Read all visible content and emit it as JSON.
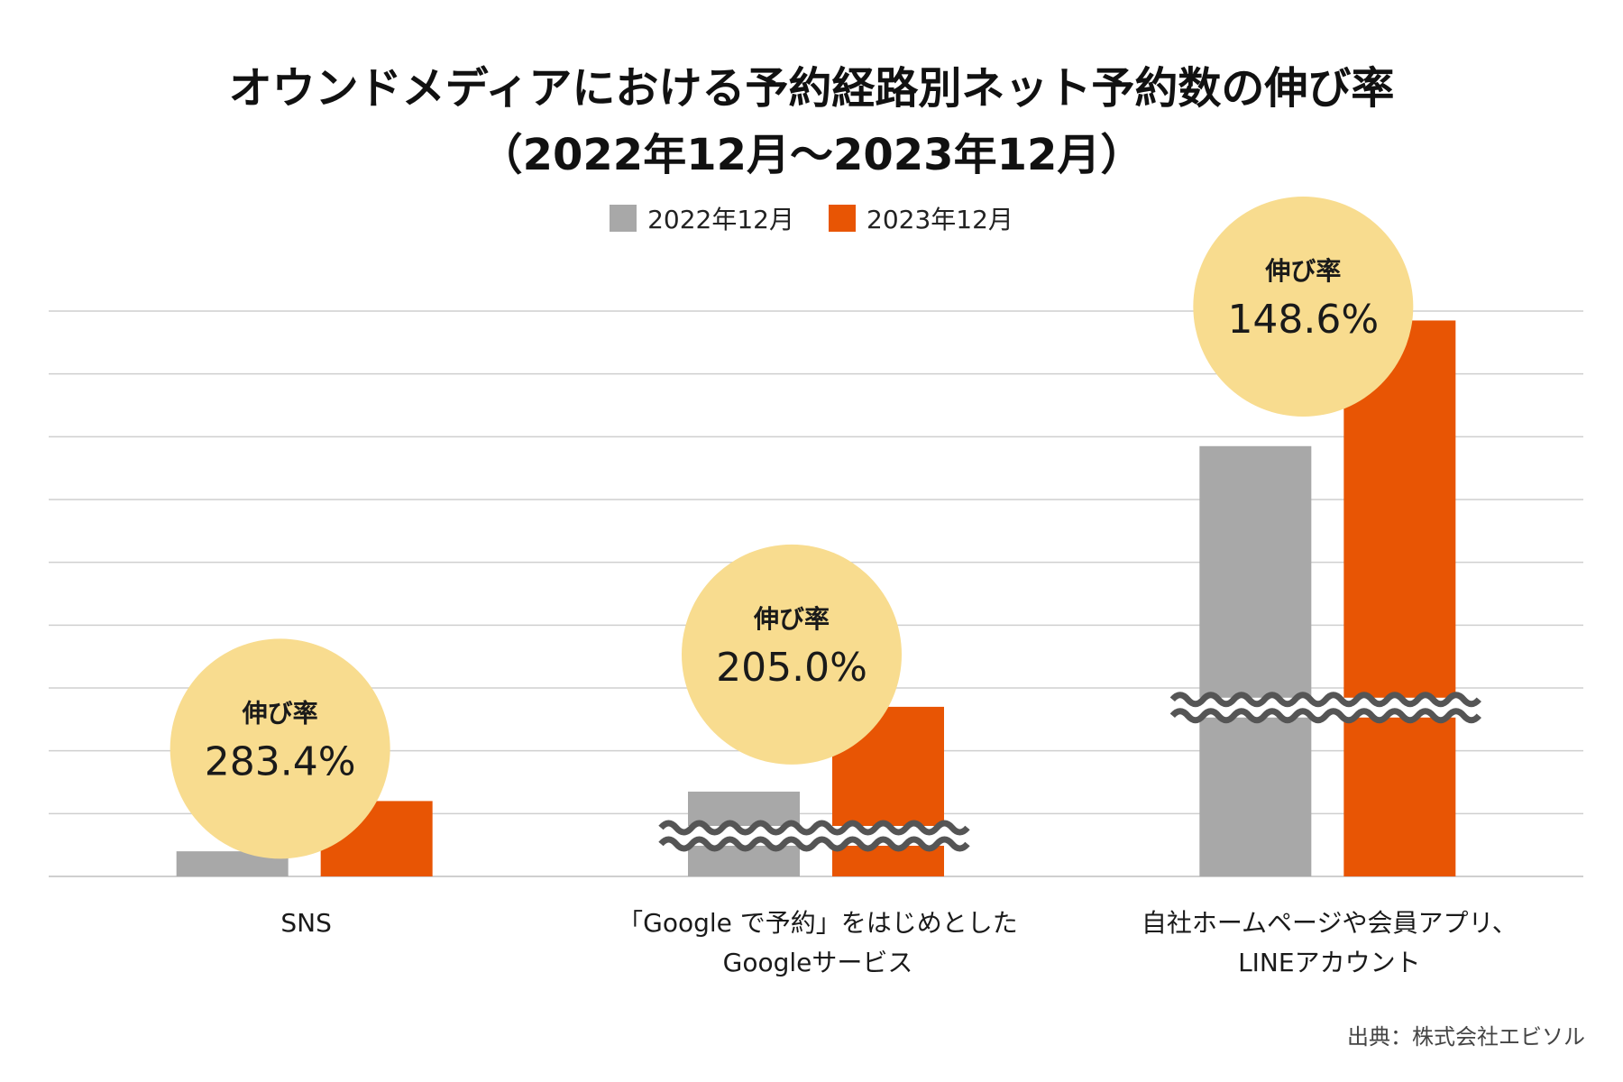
{
  "title_line1": "オウンドメディアにおける予約経路別ネット予約数の伸び率",
  "title_line2": "（2022年12月〜2023年12月）",
  "source": "出典：株式会社エビソル",
  "colors": {
    "s2022": "#a8a8a8",
    "s2023": "#e85504",
    "bubble": "#f8dc8f",
    "grid": "#cfcfcf",
    "break": "#555555"
  },
  "chart_data": {
    "type": "bar",
    "categories": [
      [
        "SNS"
      ],
      [
        "「Google で予約」をはじめとした",
        "Googleサービス"
      ],
      [
        "自社ホームページや会員アプリ、",
        "LINEアカウント"
      ]
    ],
    "series": [
      {
        "name": "2022年12月",
        "color": "#a8a8a8",
        "values": [
          0.4,
          1.35,
          6.85
        ]
      },
      {
        "name": "2023年12月",
        "color": "#e85504",
        "values": [
          1.2,
          2.7,
          8.85
        ]
      }
    ],
    "growth_label": "伸び率",
    "growth_rates": [
      "283.4%",
      "205.0%",
      "148.6%"
    ],
    "axis_breaks": [
      false,
      true,
      true
    ],
    "ylim": [
      0,
      9
    ],
    "gridlines": 9,
    "y_tick_labels": false,
    "legend_position": "top-center",
    "grid": true
  }
}
